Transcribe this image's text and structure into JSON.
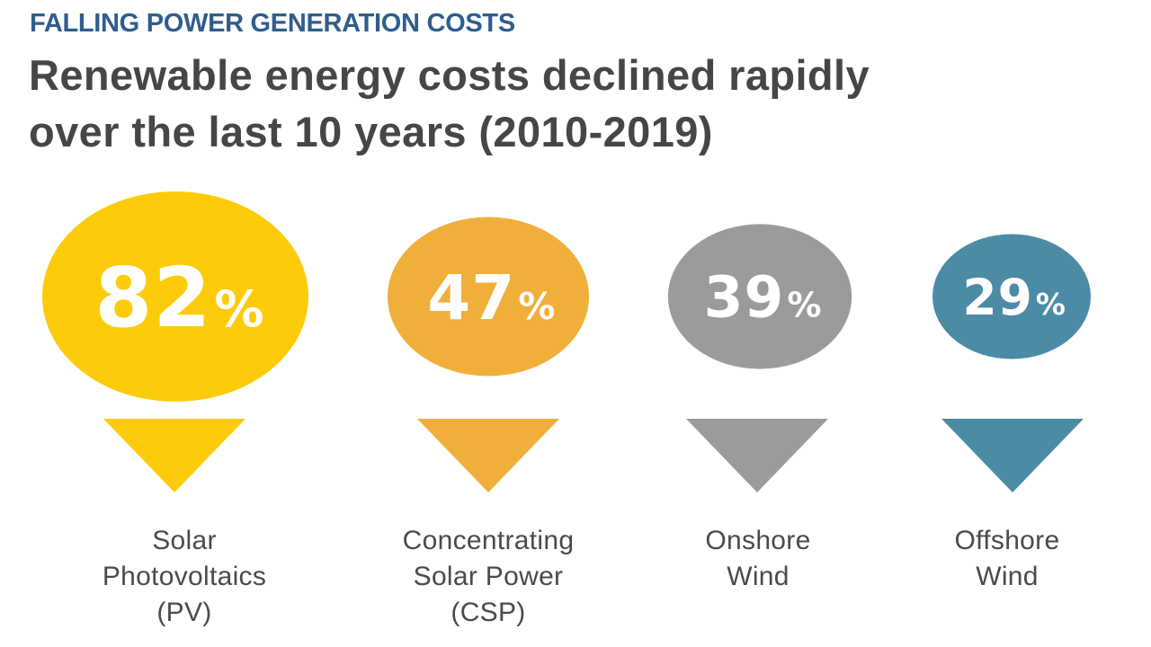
{
  "header": {
    "kicker": "FALLING POWER GENERATION COSTS",
    "title_lines": [
      "Renewable energy costs declined rapidly",
      "over the last 10 years (2010-2019)"
    ]
  },
  "chart_data": {
    "type": "bubble-infographic",
    "title": "Renewable energy costs declined rapidly over the last 10 years (2010-2019)",
    "subtitle": "FALLING POWER GENERATION COSTS",
    "unit": "% cost decline",
    "direction_icon": "down-triangle",
    "categories": [
      "Solar Photovoltaics (PV)",
      "Concentrating Solar Power (CSP)",
      "Onshore Wind",
      "Offshore Wind"
    ],
    "values": [
      82,
      47,
      39,
      29
    ],
    "items": [
      {
        "value": 82,
        "number_text": "82",
        "percent_sign": "%",
        "label_lines": [
          "Solar",
          "Photovoltaics",
          "(PV)"
        ],
        "color": "#FDCB0A"
      },
      {
        "value": 47,
        "number_text": "47",
        "percent_sign": "%",
        "label_lines": [
          "Concentrating",
          "Solar Power",
          "(CSP)"
        ],
        "color": "#F0AF3A"
      },
      {
        "value": 39,
        "number_text": "39",
        "percent_sign": "%",
        "label_lines": [
          "Onshore",
          "Wind"
        ],
        "color": "#9B9B9B"
      },
      {
        "value": 29,
        "number_text": "29",
        "percent_sign": "%",
        "label_lines": [
          "Offshore",
          "Wind"
        ],
        "color": "#4B8BA6"
      }
    ]
  },
  "colors": {
    "kicker": "#2F5D8C",
    "title": "#464646",
    "label": "#4A4A4A",
    "value_text": "#FFFFFF"
  }
}
